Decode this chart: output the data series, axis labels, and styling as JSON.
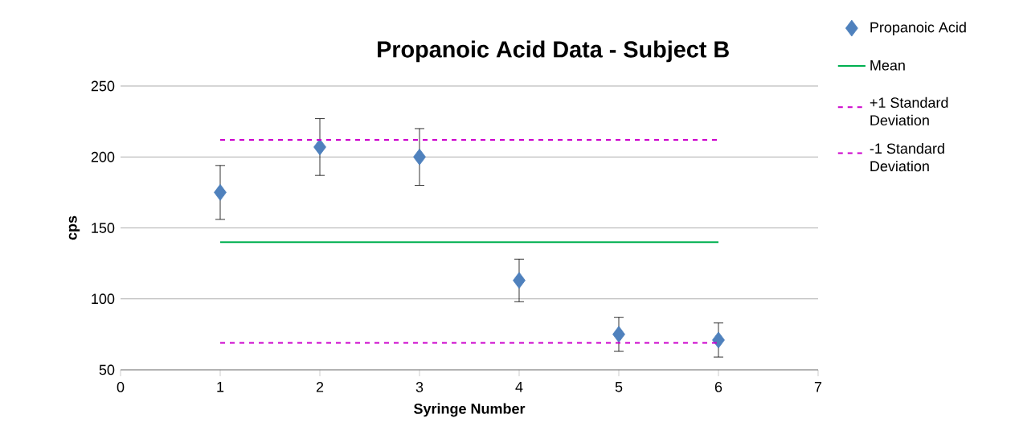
{
  "chart_data": {
    "type": "scatter",
    "title": "Propanoic Acid Data - Subject B",
    "xlabel": "Syringe Number",
    "ylabel": "cps",
    "xlim": [
      0,
      7
    ],
    "xticks": [
      0,
      1,
      2,
      3,
      4,
      5,
      6,
      7
    ],
    "ylim": [
      50,
      250
    ],
    "yticks": [
      50,
      100,
      150,
      200,
      250
    ],
    "grid": "y",
    "legend": "right",
    "marker": "diamond",
    "series": [
      {
        "name": "Propanoic Acid",
        "color": "#4f81bd",
        "x": [
          1,
          2,
          3,
          4,
          5,
          6
        ],
        "values": [
          175,
          207,
          200,
          113,
          75,
          71
        ],
        "errors": [
          19,
          20,
          20,
          15,
          12,
          12
        ]
      },
      {
        "name": "Mean",
        "type": "line",
        "marker": "none",
        "color": "#00b050",
        "line_style": "solid",
        "x": [
          1,
          6
        ],
        "values": [
          140,
          140
        ]
      },
      {
        "name": "+1 Standard Deviation",
        "type": "line",
        "marker": "none",
        "color": "#cc00cc",
        "line_style": "dashed",
        "x": [
          1,
          6
        ],
        "values": [
          212,
          212
        ]
      },
      {
        "name": "-1 Standard Deviation",
        "type": "line",
        "marker": "none",
        "color": "#cc00cc",
        "line_style": "dashed",
        "x": [
          1,
          6
        ],
        "values": [
          69,
          69
        ]
      }
    ]
  }
}
